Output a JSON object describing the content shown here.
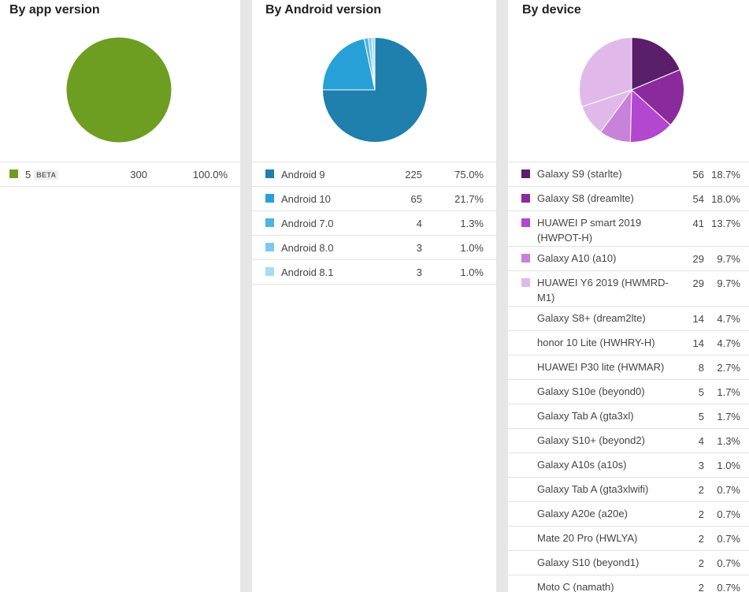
{
  "app_version": {
    "title": "By app version",
    "items": [
      {
        "label": "5",
        "badge": "BETA",
        "count": "300",
        "percent": "100.0%",
        "color": "#6e9e21",
        "share": 1.0
      }
    ]
  },
  "android_version": {
    "title": "By Android version",
    "items": [
      {
        "label": "Android 9",
        "count": "225",
        "percent": "75.0%",
        "color": "#1f7fad",
        "share": 0.75
      },
      {
        "label": "Android 10",
        "count": "65",
        "percent": "21.7%",
        "color": "#27a0d8",
        "share": 0.2167
      },
      {
        "label": "Android 7.0",
        "count": "4",
        "percent": "1.3%",
        "color": "#4fb3e3",
        "share": 0.0133
      },
      {
        "label": "Android 8.0",
        "count": "3",
        "percent": "1.0%",
        "color": "#7dc9ec",
        "share": 0.01
      },
      {
        "label": "Android 8.1",
        "count": "3",
        "percent": "1.0%",
        "color": "#a8dcf3",
        "share": 0.01
      }
    ]
  },
  "device": {
    "title": "By device",
    "items": [
      {
        "label": "Galaxy S9 (starlte)",
        "count": "56",
        "percent": "18.7%",
        "color": "#5b1e6b",
        "share": 0.187
      },
      {
        "label": "Galaxy S8 (dreamlte)",
        "count": "54",
        "percent": "18.0%",
        "color": "#8b2a9c",
        "share": 0.18
      },
      {
        "label": "HUAWEI P smart 2019 (HWPOT-H)",
        "count": "41",
        "percent": "13.7%",
        "color": "#b347cf",
        "share": 0.137
      },
      {
        "label": "Galaxy A10 (a10)",
        "count": "29",
        "percent": "9.7%",
        "color": "#c882d9",
        "share": 0.097
      },
      {
        "label": "HUAWEI Y6 2019 (HWMRD-M1)",
        "count": "29",
        "percent": "9.7%",
        "color": "#e0b9ea",
        "share": 0.097
      },
      {
        "label": "Galaxy S8+ (dream2lte)",
        "count": "14",
        "percent": "4.7%"
      },
      {
        "label": "honor 10 Lite (HWHRY-H)",
        "count": "14",
        "percent": "4.7%"
      },
      {
        "label": "HUAWEI P30 lite (HWMAR)",
        "count": "8",
        "percent": "2.7%"
      },
      {
        "label": "Galaxy S10e (beyond0)",
        "count": "5",
        "percent": "1.7%"
      },
      {
        "label": "Galaxy Tab A (gta3xl)",
        "count": "5",
        "percent": "1.7%"
      },
      {
        "label": "Galaxy S10+ (beyond2)",
        "count": "4",
        "percent": "1.3%"
      },
      {
        "label": "Galaxy A10s (a10s)",
        "count": "3",
        "percent": "1.0%"
      },
      {
        "label": "Galaxy Tab A (gta3xlwifi)",
        "count": "2",
        "percent": "0.7%"
      },
      {
        "label": "Galaxy A20e (a20e)",
        "count": "2",
        "percent": "0.7%"
      },
      {
        "label": "Mate 20 Pro (HWLYA)",
        "count": "2",
        "percent": "0.7%"
      },
      {
        "label": "Galaxy S10 (beyond1)",
        "count": "2",
        "percent": "0.7%"
      },
      {
        "label": "Moto C (namath)",
        "count": "2",
        "percent": "0.7%"
      }
    ],
    "other_share_color": "#e0b9ea"
  }
}
